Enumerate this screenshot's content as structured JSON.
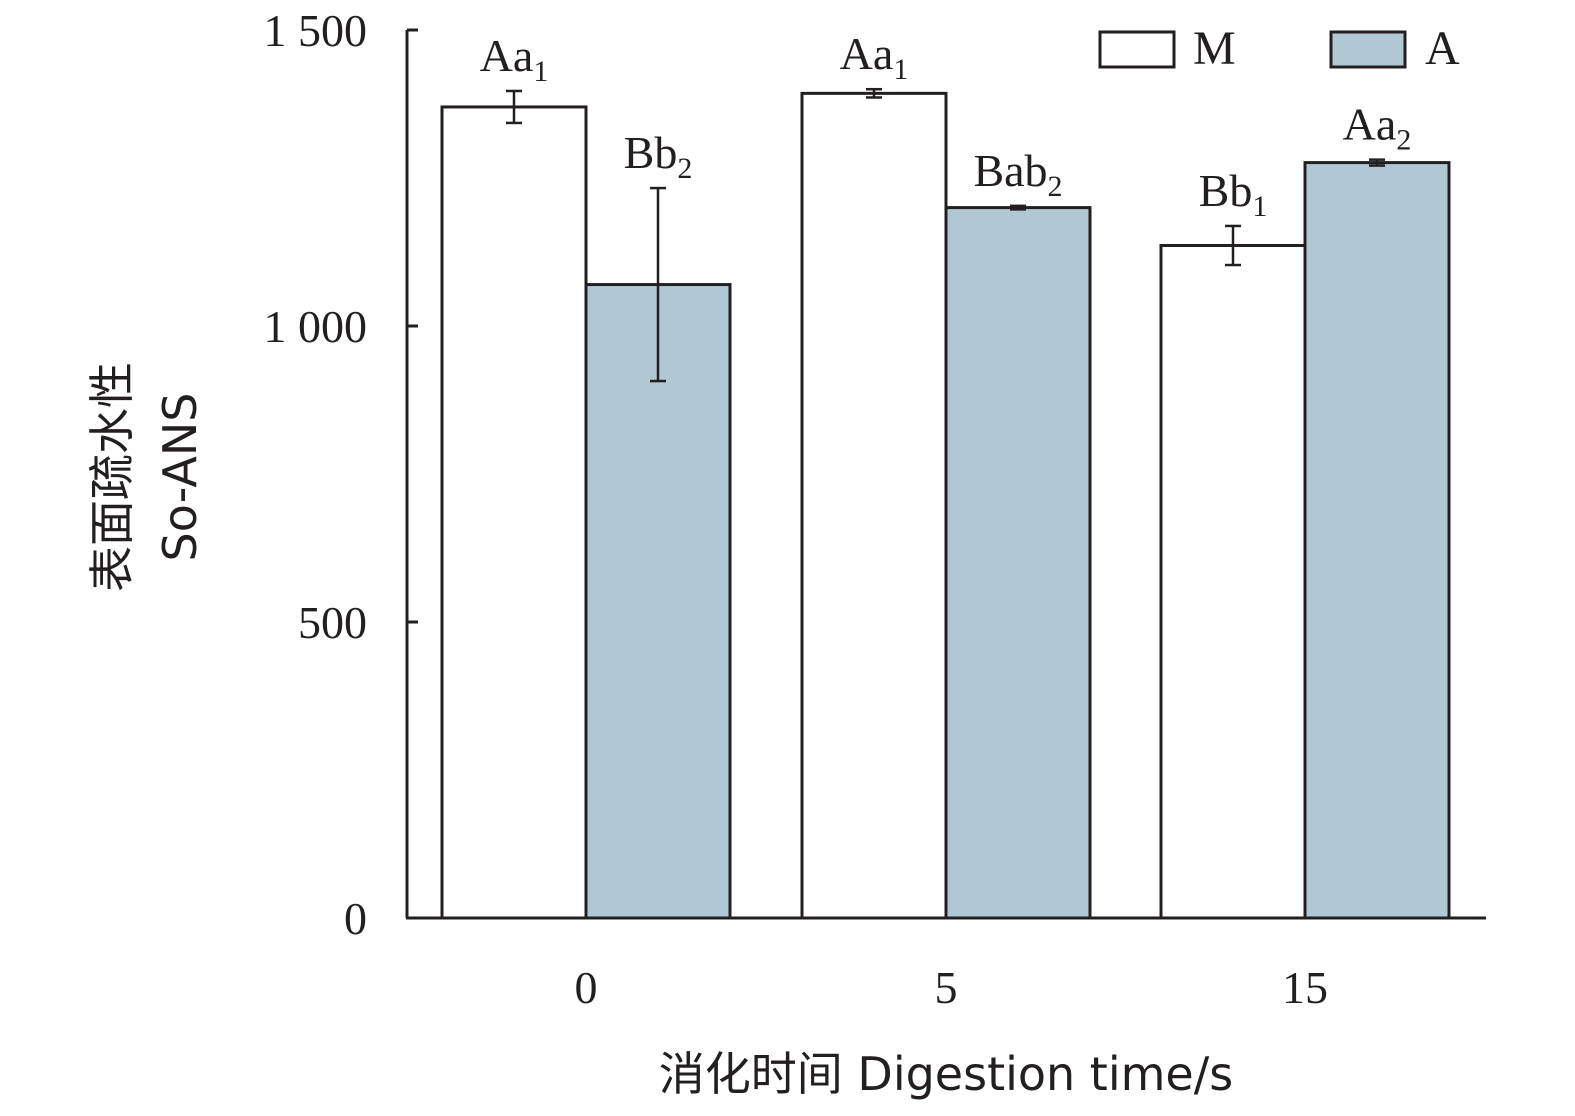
{
  "chart_data": {
    "type": "bar",
    "xlabel": "消化时间 Digestion time/s",
    "ylabel_line1": "表面疏水性",
    "ylabel_line2": "So-ANS",
    "ylim": [
      0,
      1500
    ],
    "yticks": [
      0,
      500,
      1000,
      1500
    ],
    "ytick_labels": [
      "0",
      "500",
      "1 000",
      "1 500"
    ],
    "categories": [
      "0",
      "5",
      "15"
    ],
    "colors": {
      "M": "#ffffff",
      "A": "#b0c8d4",
      "stroke": "#231f20"
    },
    "series": [
      {
        "name": "M",
        "values": [
          1370,
          1393,
          1136
        ],
        "errors": [
          27,
          7,
          33
        ],
        "labels": [
          {
            "main": "Aa",
            "sub": "1"
          },
          {
            "main": "Aa",
            "sub": "1"
          },
          {
            "main": "Bb",
            "sub": "1"
          }
        ]
      },
      {
        "name": "A",
        "values": [
          1070,
          1200,
          1276
        ],
        "errors": [
          163,
          3,
          5
        ],
        "labels": [
          {
            "main": "Bb",
            "sub": "2"
          },
          {
            "main": "Bab",
            "sub": "2"
          },
          {
            "main": "Aa",
            "sub": "2"
          }
        ]
      }
    ],
    "legend": {
      "placement": "top-right",
      "entries": [
        "M",
        "A"
      ]
    }
  }
}
